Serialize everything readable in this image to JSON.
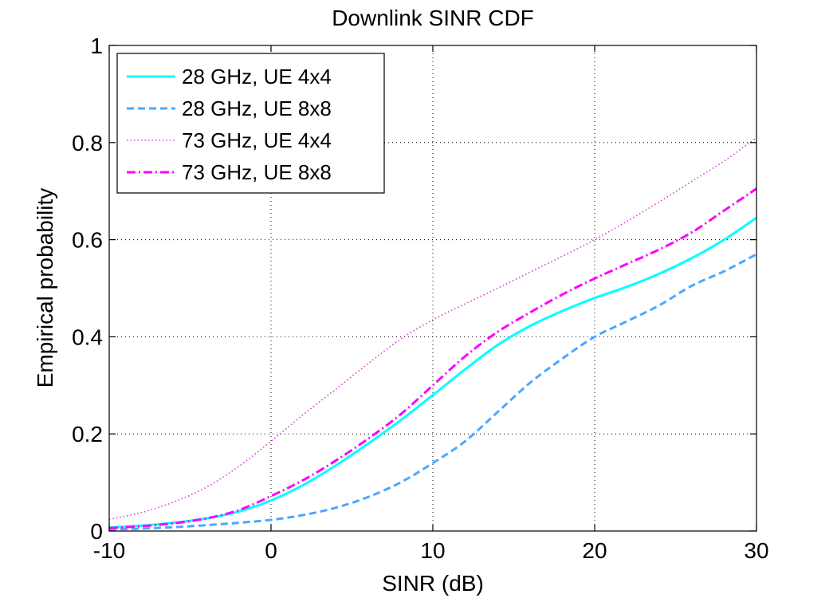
{
  "chart_data": {
    "type": "line",
    "title": "Downlink SINR CDF",
    "xlabel": "SINR (dB)",
    "ylabel": "Empirical probability",
    "xlim": [
      -10,
      30
    ],
    "ylim": [
      0,
      1
    ],
    "xticks": [
      -10,
      0,
      10,
      20,
      30
    ],
    "yticks": [
      0,
      0.2,
      0.4,
      0.6,
      0.8,
      1
    ],
    "xtick_labels": [
      "-10",
      "0",
      "10",
      "20",
      "30"
    ],
    "ytick_labels": [
      "0",
      "0.2",
      "0.4",
      "0.6",
      "0.8",
      "1"
    ],
    "grid": true,
    "legend_position": "top-left",
    "series": [
      {
        "name": "28 GHz, UE 4x4",
        "color": "#00ffff",
        "style": "solid",
        "x": [
          -10,
          -8,
          -6,
          -4,
          -2,
          0,
          2,
          4,
          6,
          8,
          10,
          12,
          14,
          16,
          18,
          20,
          22,
          24,
          26,
          28,
          30
        ],
        "y": [
          0.007,
          0.011,
          0.017,
          0.026,
          0.04,
          0.063,
          0.095,
          0.135,
          0.18,
          0.228,
          0.28,
          0.333,
          0.383,
          0.422,
          0.453,
          0.48,
          0.503,
          0.53,
          0.562,
          0.6,
          0.645
        ]
      },
      {
        "name": "28 GHz, UE 8x8",
        "color": "#4aa8ff",
        "style": "dashed",
        "x": [
          -10,
          -8,
          -6,
          -4,
          -2,
          0,
          2,
          4,
          6,
          8,
          10,
          12,
          14,
          16,
          18,
          20,
          22,
          24,
          26,
          28,
          30
        ],
        "y": [
          0.003,
          0.005,
          0.008,
          0.012,
          0.017,
          0.023,
          0.033,
          0.048,
          0.07,
          0.1,
          0.14,
          0.185,
          0.245,
          0.305,
          0.355,
          0.4,
          0.432,
          0.465,
          0.505,
          0.535,
          0.57
        ]
      },
      {
        "name": "73 GHz, UE 4x4",
        "color": "#cc44cc",
        "style": "dotted",
        "x": [
          -10,
          -8,
          -6,
          -4,
          -2,
          0,
          2,
          4,
          6,
          8,
          10,
          12,
          14,
          16,
          18,
          20,
          22,
          24,
          26,
          28,
          30
        ],
        "y": [
          0.024,
          0.038,
          0.06,
          0.09,
          0.133,
          0.185,
          0.24,
          0.292,
          0.345,
          0.395,
          0.435,
          0.468,
          0.5,
          0.533,
          0.566,
          0.6,
          0.638,
          0.678,
          0.72,
          0.762,
          0.81
        ]
      },
      {
        "name": "73 GHz, UE 8x8",
        "color": "#ff00ff",
        "style": "dashdot",
        "x": [
          -10,
          -8,
          -6,
          -4,
          -2,
          0,
          2,
          4,
          6,
          8,
          10,
          12,
          14,
          16,
          18,
          20,
          22,
          24,
          26,
          28,
          30
        ],
        "y": [
          0.006,
          0.01,
          0.016,
          0.026,
          0.043,
          0.072,
          0.105,
          0.145,
          0.19,
          0.24,
          0.3,
          0.36,
          0.41,
          0.45,
          0.487,
          0.52,
          0.55,
          0.58,
          0.615,
          0.66,
          0.705
        ]
      }
    ]
  }
}
